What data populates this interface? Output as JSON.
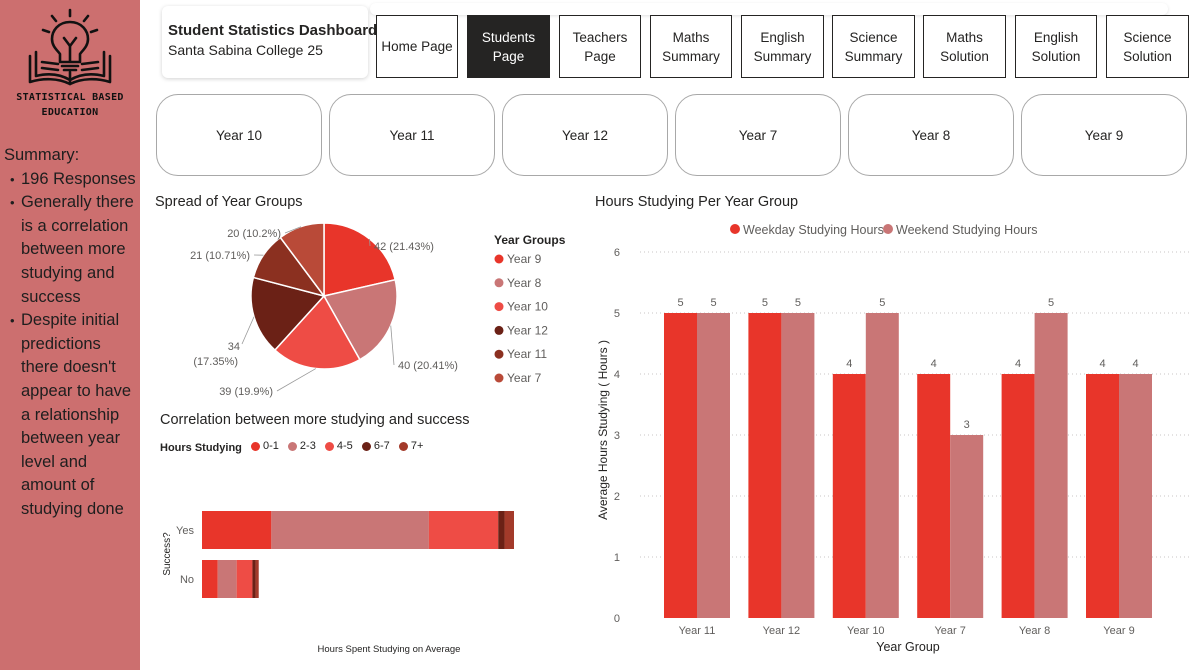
{
  "sidebar": {
    "logo_text_line1": "STATISTICAL BASED",
    "logo_text_line2": "EDUCATION",
    "summary_heading": "Summary:",
    "summary_items": [
      "196 Responses",
      "Generally there is a correlation between more studying and success",
      "Despite initial predictions there doesn't appear to have a relationship between year level and amount of studying done"
    ]
  },
  "header": {
    "title": "Student Statistics Dashboard",
    "subtitle": "Santa Sabina College 25"
  },
  "nav": [
    {
      "label": "Home Page",
      "active": false
    },
    {
      "label": "Students Page",
      "active": true
    },
    {
      "label": "Teachers Page",
      "active": false
    },
    {
      "label": "Maths Summary",
      "active": false
    },
    {
      "label": "English Summary",
      "active": false
    },
    {
      "label": "Science Summary",
      "active": false
    },
    {
      "label": "Maths Solution",
      "active": false
    },
    {
      "label": "English Solution",
      "active": false
    },
    {
      "label": "Science Solution",
      "active": false
    }
  ],
  "year_slicer": [
    "Year 10",
    "Year 11",
    "Year 12",
    "Year 7",
    "Year 8",
    "Year 9"
  ],
  "colors": {
    "sidebar": "#cc6f6f",
    "year9": "#e8352a",
    "year8": "#c97676",
    "year10": "#ee4c45",
    "year12": "#6b2116",
    "year11": "#8b3020",
    "year7": "#b94a38",
    "weekday": "#e8352a",
    "weekend": "#c97676"
  },
  "chart_data": [
    {
      "type": "pie",
      "title": "Spread of Year Groups",
      "legend_title": "Year Groups",
      "legend_position": "right",
      "slices": [
        {
          "name": "Year 9",
          "value": 42,
          "label": "42 (21.43%)"
        },
        {
          "name": "Year 8",
          "value": 40,
          "label": "40 (20.41%)"
        },
        {
          "name": "Year 10",
          "value": 39,
          "label": "39 (19.9%)"
        },
        {
          "name": "Year 12",
          "value": 34,
          "label": "34 (17.35%)"
        },
        {
          "name": "Year 11",
          "value": 21,
          "label": "21 (10.71%)"
        },
        {
          "name": "Year 7",
          "value": 20,
          "label": "20 (10.2%)"
        }
      ]
    },
    {
      "type": "bar",
      "orientation": "horizontal",
      "stacked": true,
      "title": "Correlation between more studying and success",
      "legend_title": "Hours Studying",
      "legend_position": "top-left",
      "xlabel": "Hours Spent Studying on Average",
      "ylabel": "Success?",
      "categories": [
        "Yes",
        "No"
      ],
      "series": [
        {
          "name": "0-1",
          "values": [
            22,
            5
          ]
        },
        {
          "name": "2-3",
          "values": [
            50,
            6
          ]
        },
        {
          "name": "4-5",
          "values": [
            22,
            5
          ]
        },
        {
          "name": "6-7",
          "values": [
            2,
            1
          ]
        },
        {
          "name": "7+",
          "values": [
            3,
            1
          ]
        }
      ]
    },
    {
      "type": "bar",
      "title": "Hours Studying Per Year Group",
      "xlabel": "Year Group",
      "ylabel": "Average Hours Studying ( Hours )",
      "ylim": [
        0,
        6
      ],
      "yticks": [
        0,
        1,
        2,
        3,
        4,
        5,
        6
      ],
      "grid": true,
      "legend_position": "top-center",
      "categories": [
        "Year 11",
        "Year 12",
        "Year 10",
        "Year 7",
        "Year 8",
        "Year 9"
      ],
      "series": [
        {
          "name": "Weekday Studying Hours",
          "values": [
            5,
            5,
            4,
            4,
            4,
            4
          ]
        },
        {
          "name": "Weekend Studying Hours",
          "values": [
            5,
            5,
            5,
            3,
            5,
            4
          ]
        }
      ]
    }
  ]
}
